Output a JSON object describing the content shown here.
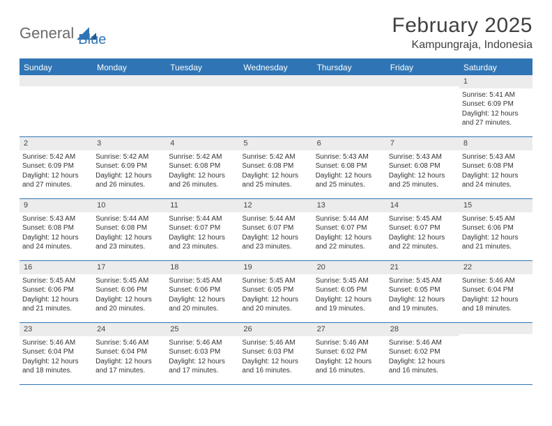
{
  "logo": {
    "general": "General",
    "blue": "Blue"
  },
  "title": "February 2025",
  "subtitle": "Kampungraja, Indonesia",
  "colors": {
    "header_bg": "#2f75b5",
    "header_text": "#ffffff",
    "strip_bg": "#ececec",
    "border": "#2f75b5",
    "page_bg": "#ffffff",
    "text": "#333333"
  },
  "weekdays": [
    "Sunday",
    "Monday",
    "Tuesday",
    "Wednesday",
    "Thursday",
    "Friday",
    "Saturday"
  ],
  "weeks": [
    [
      {
        "n": "",
        "sr": "",
        "ss": "",
        "dl": ""
      },
      {
        "n": "",
        "sr": "",
        "ss": "",
        "dl": ""
      },
      {
        "n": "",
        "sr": "",
        "ss": "",
        "dl": ""
      },
      {
        "n": "",
        "sr": "",
        "ss": "",
        "dl": ""
      },
      {
        "n": "",
        "sr": "",
        "ss": "",
        "dl": ""
      },
      {
        "n": "",
        "sr": "",
        "ss": "",
        "dl": ""
      },
      {
        "n": "1",
        "sr": "Sunrise: 5:41 AM",
        "ss": "Sunset: 6:09 PM",
        "dl": "Daylight: 12 hours and 27 minutes."
      }
    ],
    [
      {
        "n": "2",
        "sr": "Sunrise: 5:42 AM",
        "ss": "Sunset: 6:09 PM",
        "dl": "Daylight: 12 hours and 27 minutes."
      },
      {
        "n": "3",
        "sr": "Sunrise: 5:42 AM",
        "ss": "Sunset: 6:09 PM",
        "dl": "Daylight: 12 hours and 26 minutes."
      },
      {
        "n": "4",
        "sr": "Sunrise: 5:42 AM",
        "ss": "Sunset: 6:08 PM",
        "dl": "Daylight: 12 hours and 26 minutes."
      },
      {
        "n": "5",
        "sr": "Sunrise: 5:42 AM",
        "ss": "Sunset: 6:08 PM",
        "dl": "Daylight: 12 hours and 25 minutes."
      },
      {
        "n": "6",
        "sr": "Sunrise: 5:43 AM",
        "ss": "Sunset: 6:08 PM",
        "dl": "Daylight: 12 hours and 25 minutes."
      },
      {
        "n": "7",
        "sr": "Sunrise: 5:43 AM",
        "ss": "Sunset: 6:08 PM",
        "dl": "Daylight: 12 hours and 25 minutes."
      },
      {
        "n": "8",
        "sr": "Sunrise: 5:43 AM",
        "ss": "Sunset: 6:08 PM",
        "dl": "Daylight: 12 hours and 24 minutes."
      }
    ],
    [
      {
        "n": "9",
        "sr": "Sunrise: 5:43 AM",
        "ss": "Sunset: 6:08 PM",
        "dl": "Daylight: 12 hours and 24 minutes."
      },
      {
        "n": "10",
        "sr": "Sunrise: 5:44 AM",
        "ss": "Sunset: 6:08 PM",
        "dl": "Daylight: 12 hours and 23 minutes."
      },
      {
        "n": "11",
        "sr": "Sunrise: 5:44 AM",
        "ss": "Sunset: 6:07 PM",
        "dl": "Daylight: 12 hours and 23 minutes."
      },
      {
        "n": "12",
        "sr": "Sunrise: 5:44 AM",
        "ss": "Sunset: 6:07 PM",
        "dl": "Daylight: 12 hours and 23 minutes."
      },
      {
        "n": "13",
        "sr": "Sunrise: 5:44 AM",
        "ss": "Sunset: 6:07 PM",
        "dl": "Daylight: 12 hours and 22 minutes."
      },
      {
        "n": "14",
        "sr": "Sunrise: 5:45 AM",
        "ss": "Sunset: 6:07 PM",
        "dl": "Daylight: 12 hours and 22 minutes."
      },
      {
        "n": "15",
        "sr": "Sunrise: 5:45 AM",
        "ss": "Sunset: 6:06 PM",
        "dl": "Daylight: 12 hours and 21 minutes."
      }
    ],
    [
      {
        "n": "16",
        "sr": "Sunrise: 5:45 AM",
        "ss": "Sunset: 6:06 PM",
        "dl": "Daylight: 12 hours and 21 minutes."
      },
      {
        "n": "17",
        "sr": "Sunrise: 5:45 AM",
        "ss": "Sunset: 6:06 PM",
        "dl": "Daylight: 12 hours and 20 minutes."
      },
      {
        "n": "18",
        "sr": "Sunrise: 5:45 AM",
        "ss": "Sunset: 6:06 PM",
        "dl": "Daylight: 12 hours and 20 minutes."
      },
      {
        "n": "19",
        "sr": "Sunrise: 5:45 AM",
        "ss": "Sunset: 6:05 PM",
        "dl": "Daylight: 12 hours and 20 minutes."
      },
      {
        "n": "20",
        "sr": "Sunrise: 5:45 AM",
        "ss": "Sunset: 6:05 PM",
        "dl": "Daylight: 12 hours and 19 minutes."
      },
      {
        "n": "21",
        "sr": "Sunrise: 5:45 AM",
        "ss": "Sunset: 6:05 PM",
        "dl": "Daylight: 12 hours and 19 minutes."
      },
      {
        "n": "22",
        "sr": "Sunrise: 5:46 AM",
        "ss": "Sunset: 6:04 PM",
        "dl": "Daylight: 12 hours and 18 minutes."
      }
    ],
    [
      {
        "n": "23",
        "sr": "Sunrise: 5:46 AM",
        "ss": "Sunset: 6:04 PM",
        "dl": "Daylight: 12 hours and 18 minutes."
      },
      {
        "n": "24",
        "sr": "Sunrise: 5:46 AM",
        "ss": "Sunset: 6:04 PM",
        "dl": "Daylight: 12 hours and 17 minutes."
      },
      {
        "n": "25",
        "sr": "Sunrise: 5:46 AM",
        "ss": "Sunset: 6:03 PM",
        "dl": "Daylight: 12 hours and 17 minutes."
      },
      {
        "n": "26",
        "sr": "Sunrise: 5:46 AM",
        "ss": "Sunset: 6:03 PM",
        "dl": "Daylight: 12 hours and 16 minutes."
      },
      {
        "n": "27",
        "sr": "Sunrise: 5:46 AM",
        "ss": "Sunset: 6:02 PM",
        "dl": "Daylight: 12 hours and 16 minutes."
      },
      {
        "n": "28",
        "sr": "Sunrise: 5:46 AM",
        "ss": "Sunset: 6:02 PM",
        "dl": "Daylight: 12 hours and 16 minutes."
      },
      {
        "n": "",
        "sr": "",
        "ss": "",
        "dl": ""
      }
    ]
  ]
}
